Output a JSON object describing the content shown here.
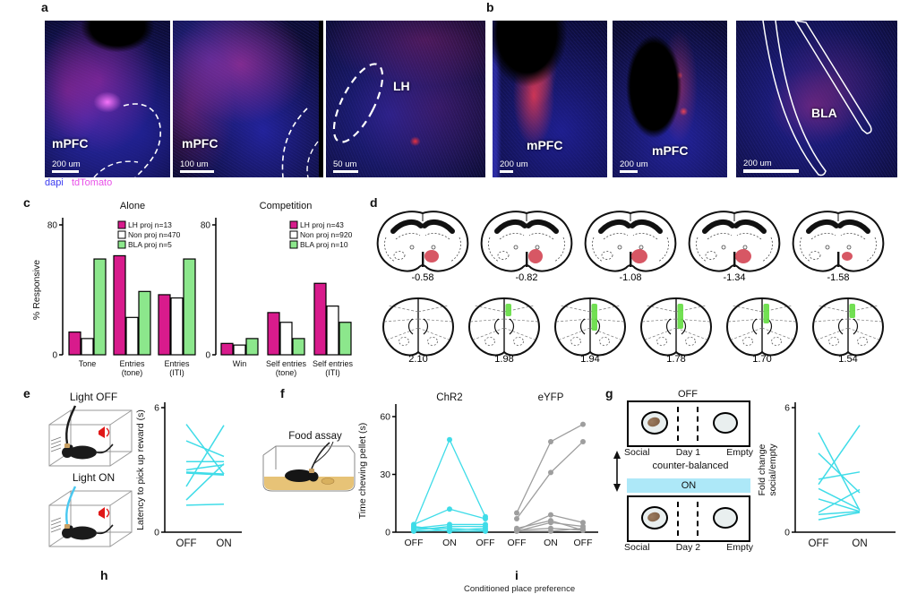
{
  "panels": {
    "a": "a",
    "b": "b",
    "c": "c",
    "d": "d",
    "e": "e",
    "f": "f",
    "g": "g",
    "h": "h",
    "i": "i"
  },
  "panel_a": {
    "images": [
      {
        "label": "mPFC",
        "scale_bar": "200 um"
      },
      {
        "label": "mPFC",
        "scale_bar": "100 um"
      },
      {
        "label": "LH",
        "scale_bar": "50 um"
      }
    ],
    "legend": [
      {
        "text": "dapi",
        "color": "#3a3af0"
      },
      {
        "text": "tdTomato",
        "color": "#e850e8"
      }
    ]
  },
  "panel_b": {
    "images": [
      {
        "label": "mPFC",
        "scale_bar": "200 um"
      },
      {
        "label": "mPFC",
        "scale_bar": "200 um"
      },
      {
        "label": "BLA",
        "scale_bar": "200 um"
      }
    ]
  },
  "panel_d": {
    "top_row": {
      "color": "#d2404f",
      "labels": [
        "-0.58",
        "-0.82",
        "-1.08",
        "-1.34",
        "-1.58"
      ],
      "red_sizes": [
        [
          8,
          7
        ],
        [
          8,
          8
        ],
        [
          9,
          8
        ],
        [
          9,
          8
        ],
        [
          6,
          5
        ]
      ]
    },
    "bottom_row": {
      "color": "#66dd44",
      "labels": [
        "2.10",
        "1.98",
        "1.94",
        "1.78",
        "1.70",
        "1.54"
      ],
      "green_heights": [
        0,
        14,
        30,
        28,
        22,
        16
      ]
    }
  },
  "panel_e": {
    "schematic_top_label": "Light OFF",
    "schematic_bottom_label": "Light ON",
    "cable_off_color": "#1a1a1a",
    "cable_on_color": "#49c8f0"
  },
  "panel_f": {
    "schematic_label": "Food assay"
  },
  "panel_g": {
    "top_condition": "OFF",
    "bottom_condition": "ON",
    "counter_balanced": "counter-balanced",
    "on_banner_color": "#ade8f8",
    "top_zone_labels": [
      "Social",
      "Day 1",
      "Empty"
    ],
    "bottom_zone_labels": [
      "Social",
      "Day 2",
      "Empty"
    ]
  },
  "panel_i": {
    "title": "Conditioned place preference"
  },
  "chart_data": [
    {
      "id": "alone",
      "type": "bar",
      "title": "Alone",
      "ylabel": "% Responsive",
      "ylim": [
        0,
        80
      ],
      "yticks": [
        0,
        80
      ],
      "categories": [
        [
          "Tone"
        ],
        [
          "Entries",
          "(tone)"
        ],
        [
          "Entries",
          "(ITI)"
        ]
      ],
      "series": [
        {
          "name": "LH proj n=13",
          "color": "#d81b8c",
          "values": [
            14,
            61,
            37
          ]
        },
        {
          "name": "Non proj n=470",
          "color": "#ffffff",
          "values": [
            10,
            23,
            35
          ]
        },
        {
          "name": "BLA proj n=5",
          "color": "#8ce78c",
          "values": [
            59,
            39,
            59
          ]
        }
      ],
      "legend_position": "top-right",
      "grid": false
    },
    {
      "id": "competition",
      "type": "bar",
      "title": "Competition",
      "ylabel": "",
      "ylim": [
        0,
        80
      ],
      "yticks": [
        0,
        80
      ],
      "categories": [
        [
          "Win"
        ],
        [
          "Self entries",
          "(tone)"
        ],
        [
          "Self entries",
          "(ITI)"
        ]
      ],
      "series": [
        {
          "name": "LH proj n=43",
          "color": "#d81b8c",
          "values": [
            7,
            26,
            44
          ]
        },
        {
          "name": "Non proj n=920",
          "color": "#ffffff",
          "values": [
            6,
            20,
            30
          ]
        },
        {
          "name": "BLA proj n=10",
          "color": "#8ce78c",
          "values": [
            10,
            10,
            20
          ]
        }
      ],
      "legend_position": "top-right",
      "grid": false
    },
    {
      "id": "latency",
      "type": "line",
      "title": "",
      "ylabel": "Latency to pick up reward (s)",
      "ylim": [
        0,
        6
      ],
      "yticks": [
        0,
        6
      ],
      "categories": [
        "OFF",
        "ON"
      ],
      "color": "#3fdce8",
      "pairs": [
        [
          5.2,
          2.8
        ],
        [
          4.4,
          3.65
        ],
        [
          3.4,
          3.4
        ],
        [
          3.0,
          3.25
        ],
        [
          2.9,
          2.8
        ],
        [
          2.85,
          2.75
        ],
        [
          2.2,
          5.15
        ],
        [
          1.55,
          3.3
        ],
        [
          1.3,
          1.35
        ]
      ]
    },
    {
      "id": "food",
      "type": "line",
      "ylabel": "Time chewing pellet (s)",
      "ylim": [
        0,
        60
      ],
      "yticks": [
        0,
        30,
        60
      ],
      "groups": [
        {
          "name": "ChR2",
          "color": "#3fdce8",
          "categories": [
            "OFF",
            "ON",
            "OFF"
          ],
          "series": [
            [
              3,
              48,
              8
            ],
            [
              4,
              12,
              7
            ],
            [
              2,
              4,
              4
            ],
            [
              1,
              3,
              3
            ],
            [
              2,
              2,
              1
            ],
            [
              0.5,
              1,
              2
            ],
            [
              3,
              0.5,
              0.5
            ]
          ]
        },
        {
          "name": "eYFP",
          "color": "#9e9e9e",
          "categories": [
            "OFF",
            "ON",
            "OFF"
          ],
          "series": [
            [
              10,
              47,
              56
            ],
            [
              7,
              31,
              47
            ],
            [
              1,
              9,
              5
            ],
            [
              2,
              6,
              1
            ],
            [
              0.5,
              5,
              3
            ],
            [
              1,
              2,
              1
            ],
            [
              0.5,
              0.5,
              2
            ]
          ]
        }
      ]
    },
    {
      "id": "foldchange",
      "type": "line",
      "title": "",
      "ylabel": "Fold change\nsocial/empty",
      "ylim": [
        0,
        6
      ],
      "yticks": [
        0,
        6
      ],
      "categories": [
        "OFF",
        "ON"
      ],
      "color": "#3fdce8",
      "pairs": [
        [
          4.8,
          1.05
        ],
        [
          3.8,
          1.9
        ],
        [
          2.55,
          2.9
        ],
        [
          2.3,
          5.15
        ],
        [
          2.1,
          1.1
        ],
        [
          1.6,
          1.0
        ],
        [
          0.95,
          2.05
        ],
        [
          0.85,
          1.0
        ],
        [
          0.6,
          0.95
        ]
      ]
    }
  ]
}
